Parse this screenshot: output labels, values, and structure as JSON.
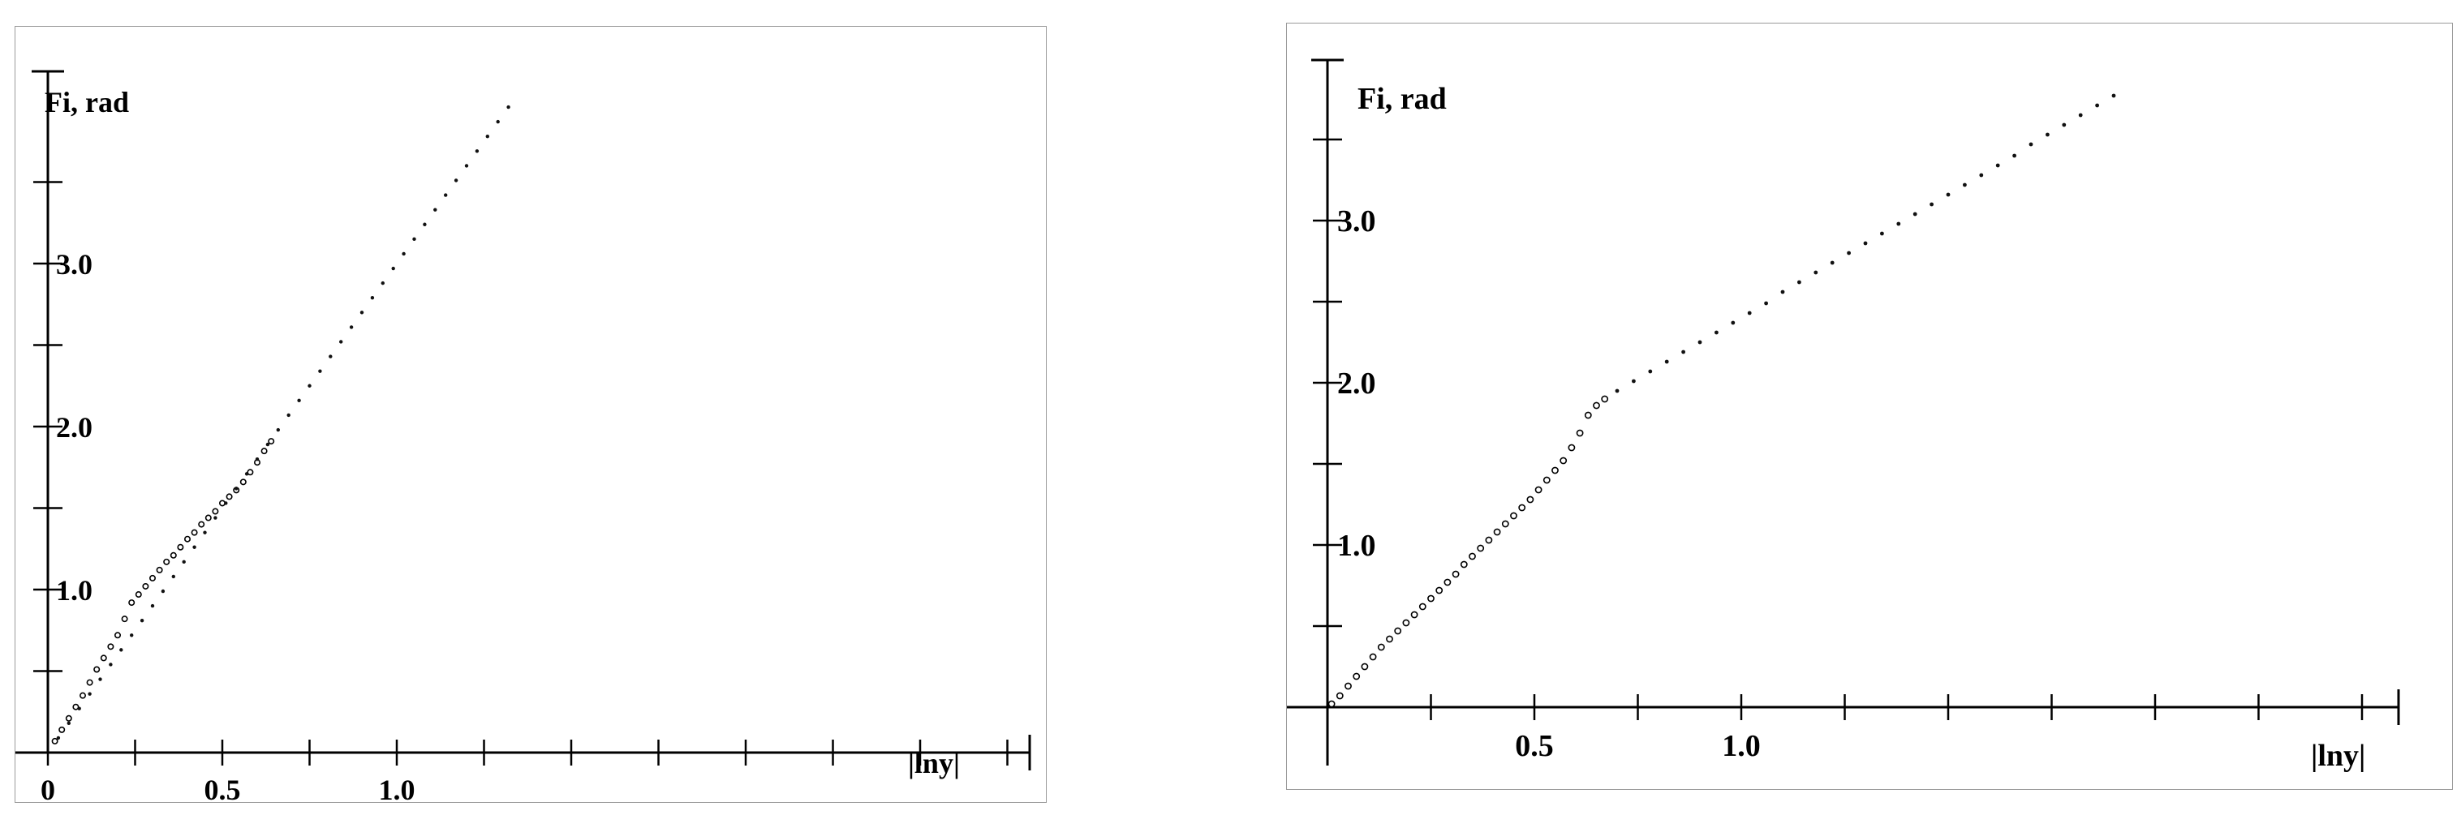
{
  "charts": [
    {
      "ylabel": "Fi, rad",
      "xlabel": "|lny|",
      "x_ticks": [
        {
          "value": 0,
          "label": "0"
        },
        {
          "value": 0.5,
          "label": "0.5"
        },
        {
          "value": 1.0,
          "label": "1.0"
        }
      ],
      "y_ticks": [
        {
          "value": 1.0,
          "label": "1.0"
        },
        {
          "value": 2.0,
          "label": "2.0"
        },
        {
          "value": 3.0,
          "label": "3.0"
        }
      ]
    },
    {
      "ylabel": "Fi, rad",
      "xlabel": "|lny|",
      "x_ticks": [
        {
          "value": 0.5,
          "label": "0.5"
        },
        {
          "value": 1.0,
          "label": "1.0"
        }
      ],
      "y_ticks": [
        {
          "value": 1.0,
          "label": "1.0"
        },
        {
          "value": 2.0,
          "label": "2.0"
        },
        {
          "value": 3.0,
          "label": "3.0"
        }
      ]
    }
  ],
  "chart_data": [
    {
      "type": "scatter",
      "title": "",
      "xlabel": "|lny|",
      "ylabel": "Fi, rad",
      "xlim": [
        -0.03,
        2.8
      ],
      "ylim": [
        -0.3,
        4.1
      ],
      "grid": false,
      "series": [
        {
          "marker": "circle",
          "x": [
            0.02,
            0.04,
            0.06,
            0.08,
            0.1,
            0.12,
            0.14,
            0.16,
            0.18,
            0.2,
            0.22,
            0.24,
            0.26,
            0.28,
            0.3,
            0.32,
            0.34,
            0.36,
            0.38,
            0.4,
            0.42,
            0.44,
            0.46,
            0.48,
            0.5,
            0.52,
            0.54,
            0.56,
            0.58,
            0.6,
            0.62,
            0.64
          ],
          "y": [
            0.07,
            0.14,
            0.21,
            0.28,
            0.35,
            0.43,
            0.51,
            0.58,
            0.65,
            0.72,
            0.82,
            0.92,
            0.97,
            1.02,
            1.07,
            1.12,
            1.17,
            1.21,
            1.26,
            1.31,
            1.35,
            1.4,
            1.44,
            1.48,
            1.53,
            1.57,
            1.61,
            1.66,
            1.72,
            1.78,
            1.85,
            1.91
          ]
        },
        {
          "marker": "dot",
          "x": [
            0.03,
            0.06,
            0.09,
            0.12,
            0.15,
            0.18,
            0.21,
            0.24,
            0.27,
            0.3,
            0.33,
            0.36,
            0.39,
            0.42,
            0.45,
            0.48,
            0.51,
            0.54,
            0.57,
            0.6,
            0.63,
            0.66,
            0.69,
            0.72,
            0.75,
            0.78,
            0.81,
            0.84,
            0.87,
            0.9,
            0.93,
            0.96,
            0.99,
            1.02,
            1.05,
            1.08,
            1.11,
            1.14,
            1.17,
            1.2,
            1.23,
            1.26,
            1.29,
            1.32
          ],
          "y": [
            0.09,
            0.18,
            0.27,
            0.36,
            0.45,
            0.54,
            0.63,
            0.72,
            0.81,
            0.9,
            0.99,
            1.08,
            1.17,
            1.26,
            1.35,
            1.44,
            1.53,
            1.62,
            1.71,
            1.8,
            1.89,
            1.98,
            2.07,
            2.16,
            2.25,
            2.34,
            2.43,
            2.52,
            2.61,
            2.7,
            2.79,
            2.88,
            2.97,
            3.06,
            3.15,
            3.24,
            3.33,
            3.42,
            3.51,
            3.6,
            3.69,
            3.78,
            3.87,
            3.96
          ]
        }
      ]
    },
    {
      "type": "scatter",
      "title": "",
      "xlabel": "|lny|",
      "ylabel": "Fi, rad",
      "xlim": [
        -0.03,
        2.55
      ],
      "ylim": [
        -0.25,
        4.1
      ],
      "grid": false,
      "series": [
        {
          "marker": "circle",
          "x": [
            0.01,
            0.03,
            0.05,
            0.07,
            0.09,
            0.11,
            0.13,
            0.15,
            0.17,
            0.19,
            0.21,
            0.23,
            0.25,
            0.27,
            0.29,
            0.31,
            0.33,
            0.35,
            0.37,
            0.39,
            0.41,
            0.43,
            0.45,
            0.47,
            0.49,
            0.51,
            0.53,
            0.55,
            0.57,
            0.59,
            0.61,
            0.63,
            0.65,
            0.67
          ],
          "y": [
            0.02,
            0.07,
            0.13,
            0.19,
            0.25,
            0.31,
            0.37,
            0.42,
            0.47,
            0.52,
            0.57,
            0.62,
            0.67,
            0.72,
            0.77,
            0.82,
            0.88,
            0.93,
            0.98,
            1.03,
            1.08,
            1.13,
            1.18,
            1.23,
            1.28,
            1.34,
            1.4,
            1.46,
            1.52,
            1.6,
            1.69,
            1.8,
            1.86,
            1.9
          ]
        },
        {
          "marker": "dot",
          "x": [
            0.7,
            0.74,
            0.78,
            0.82,
            0.86,
            0.9,
            0.94,
            0.98,
            1.02,
            1.06,
            1.1,
            1.14,
            1.18,
            1.22,
            1.26,
            1.3,
            1.34,
            1.38,
            1.42,
            1.46,
            1.5,
            1.54,
            1.58,
            1.62,
            1.66,
            1.7,
            1.74,
            1.78,
            1.82,
            1.86,
            1.9
          ],
          "y": [
            1.95,
            2.01,
            2.07,
            2.13,
            2.19,
            2.25,
            2.31,
            2.37,
            2.43,
            2.49,
            2.56,
            2.62,
            2.68,
            2.74,
            2.8,
            2.86,
            2.92,
            2.98,
            3.04,
            3.1,
            3.16,
            3.22,
            3.28,
            3.34,
            3.4,
            3.47,
            3.53,
            3.59,
            3.65,
            3.71,
            3.77
          ]
        }
      ]
    }
  ]
}
